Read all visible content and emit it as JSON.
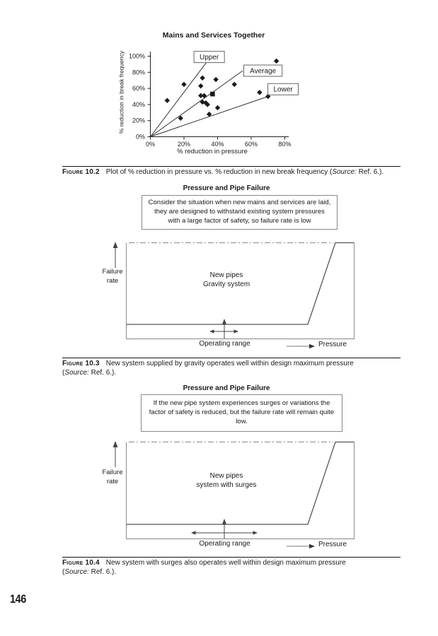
{
  "page": {
    "number": "146"
  },
  "chart_data": {
    "type": "scatter",
    "title": "Mains and Services Together",
    "xlabel": "% reduction in pressure",
    "ylabel": "% reduction in break frequency",
    "xlim": [
      0,
      80
    ],
    "ylim": [
      0,
      100
    ],
    "xticks": [
      0,
      20,
      40,
      60,
      80
    ],
    "yticks": [
      0,
      20,
      40,
      60,
      80,
      100
    ],
    "tick_suffix": "%",
    "grid": false,
    "legend_position": "boxed-labels-on-lines",
    "points": [
      [
        10,
        45
      ],
      [
        18,
        23
      ],
      [
        20,
        65
      ],
      [
        30,
        63
      ],
      [
        31,
        73
      ],
      [
        30,
        51
      ],
      [
        32,
        51
      ],
      [
        31,
        43
      ],
      [
        33,
        42
      ],
      [
        34,
        40
      ],
      [
        35,
        28
      ],
      [
        39,
        71
      ],
      [
        40,
        36
      ],
      [
        50,
        65
      ],
      [
        65,
        55
      ],
      [
        70,
        50
      ],
      [
        75,
        94
      ]
    ],
    "square_point": [
      37,
      53
    ],
    "lines": [
      {
        "label": "Upper",
        "from": [
          0,
          0
        ],
        "to": [
          34,
          94
        ],
        "label_pos": [
          35,
          99
        ]
      },
      {
        "label": "Average",
        "from": [
          0,
          0
        ],
        "to": [
          55,
          82
        ],
        "label_pos": [
          67,
          82
        ]
      },
      {
        "label": "Lower",
        "from": [
          0,
          0
        ],
        "to": [
          70,
          50
        ],
        "label_pos": [
          79,
          59
        ]
      }
    ]
  },
  "figures": {
    "fig102": {
      "caption": {
        "label": "Figure 10.2",
        "body": [
          {
            "t": "Plot of % reduction in pressure vs. % reduction in new break frequency ("
          },
          {
            "t": "Source:",
            "i": true
          },
          {
            "t": " Ref. 6.)."
          }
        ]
      }
    },
    "fig103": {
      "title": "Pressure and Pipe Failure",
      "note": "Consider the situation when new mains and services are laid,\nthey are designed to withstand existing system pressures\nwith a large factor of safety, so failure rate is low",
      "labels": {
        "y_axis": "Failure\nrate",
        "center": "New pipes\nGravity system",
        "operating_range": "Operating range",
        "pressure": "Pressure"
      },
      "caption": {
        "label": "Figure 10.3",
        "body": [
          {
            "t": "New system supplied by gravity operates well within design maximum pressure"
          },
          {
            "br": true
          },
          {
            "t": "("
          },
          {
            "t": "Source:",
            "i": true
          },
          {
            "t": " Ref. 6.)."
          }
        ]
      }
    },
    "fig104": {
      "title": "Pressure and Pipe Failure",
      "note": "If the new pipe system experiences surges or variations the\nfactor of safety is reduced, but the failure rate will remain quite low.",
      "labels": {
        "y_axis": "Failure\nrate",
        "center": "New pipes\nsystem with surges",
        "operating_range": "Operating range",
        "pressure": "Pressure"
      },
      "caption": {
        "label": "Figure 10.4",
        "body": [
          {
            "t": "New system with surges also operates well within design maximum pressure"
          },
          {
            "br": true
          },
          {
            "t": "("
          },
          {
            "t": "Source:",
            "i": true
          },
          {
            "t": " Ref. 6.)."
          }
        ]
      }
    }
  }
}
